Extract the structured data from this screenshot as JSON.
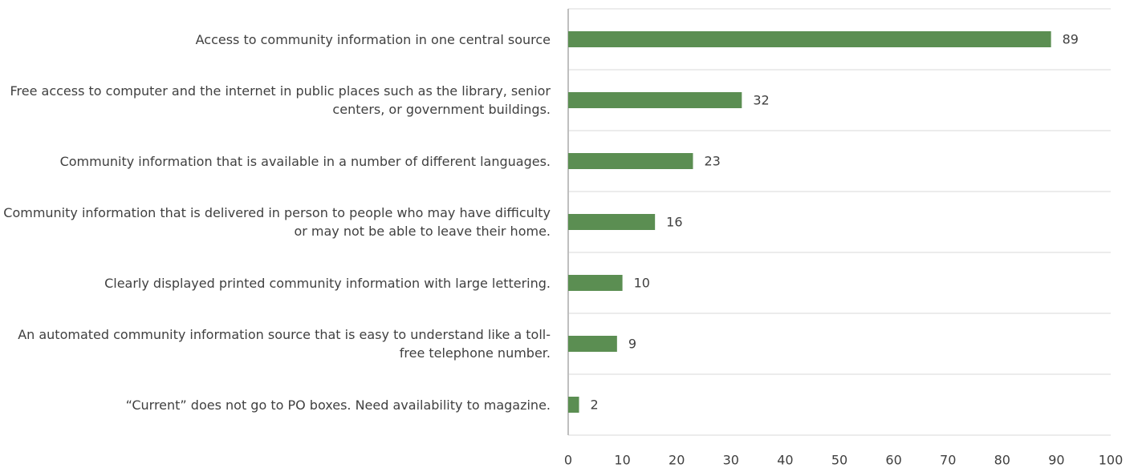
{
  "chart_data": {
    "type": "barh",
    "categories": [
      "Access to community information in one central source",
      "Free access to computer and the internet in public places such as the library, senior centers, or government buildings.",
      "Community information that is available in a number of different languages.",
      "Community information that is delivered in person to people who may have difficulty or may not be able to leave their home.",
      "Clearly displayed printed community information with large lettering.",
      "An automated community information source that is easy to understand like a toll-free telephone number.",
      "“Current” does not go to PO boxes. Need availability to magazine."
    ],
    "values": [
      89,
      32,
      23,
      16,
      10,
      9,
      2
    ],
    "color": "#5b8e52",
    "xlim": [
      0,
      100
    ],
    "xticks": [
      0,
      10,
      20,
      30,
      40,
      50,
      60,
      70,
      80,
      90,
      100
    ]
  }
}
